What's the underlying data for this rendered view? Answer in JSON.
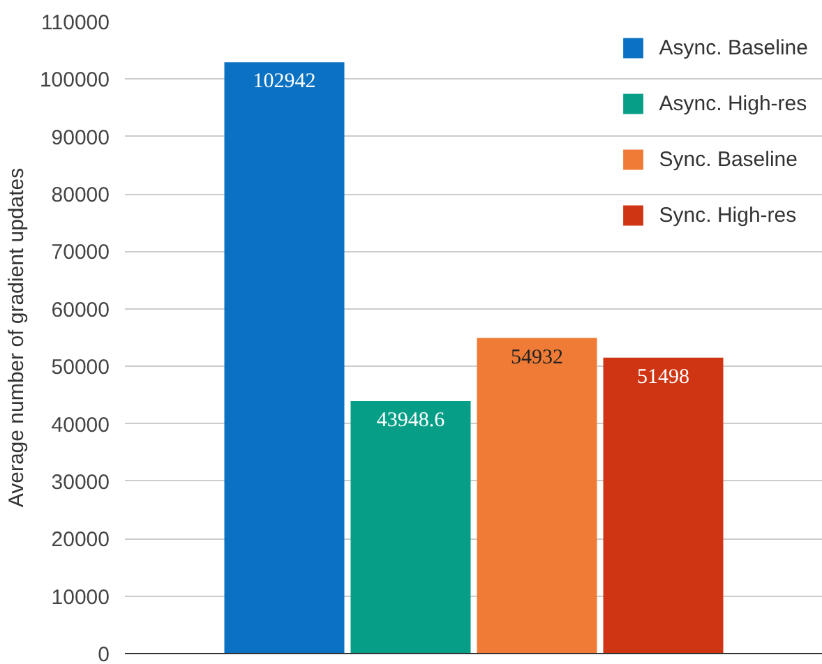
{
  "chart_data": {
    "type": "bar",
    "ylabel": "Average number of gradient updates",
    "categories": [
      null
    ],
    "series": [
      {
        "name": "Async. Baseline",
        "color": "#0b72c3",
        "values": [
          102942
        ]
      },
      {
        "name": "Async. High-res",
        "color": "#069e86",
        "values": [
          43948.6
        ]
      },
      {
        "name": "Sync. Baseline",
        "color": "#f07b36",
        "values": [
          54932
        ]
      },
      {
        "name": "Sync. High-res",
        "color": "#cf3413",
        "values": [
          51498
        ]
      }
    ],
    "ylim": [
      0,
      110000
    ],
    "yticks": [
      0,
      10000,
      20000,
      30000,
      40000,
      50000,
      60000,
      70000,
      80000,
      90000,
      100000,
      110000
    ],
    "grid": "y",
    "legend": "top right",
    "data_labels": true
  }
}
